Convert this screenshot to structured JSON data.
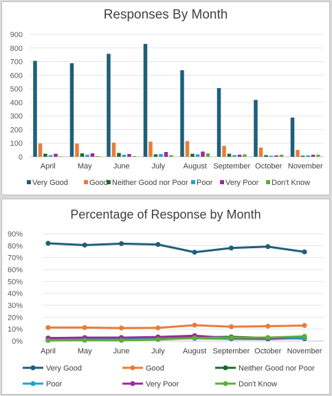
{
  "chart_data": [
    {
      "type": "bar",
      "title": "Responses By Month",
      "categories": [
        "April",
        "May",
        "June",
        "July",
        "August",
        "September",
        "October",
        "November"
      ],
      "ylim": [
        0,
        900
      ],
      "yticks": [
        0,
        100,
        200,
        300,
        400,
        500,
        600,
        700,
        800,
        900
      ],
      "grid": true,
      "legend_position": "bottom",
      "series": [
        {
          "name": "Very Good",
          "color": "#1f5f7a",
          "values": [
            705,
            688,
            757,
            830,
            636,
            505,
            418,
            288
          ]
        },
        {
          "name": "Good",
          "color": "#e87d37",
          "values": [
            98,
            97,
            104,
            112,
            115,
            80,
            68,
            50
          ]
        },
        {
          "name": "Neither Good nor Poor",
          "color": "#1a6b2a",
          "values": [
            22,
            25,
            28,
            18,
            22,
            22,
            12,
            8
          ]
        },
        {
          "name": "Poor",
          "color": "#1fa2d6",
          "values": [
            12,
            15,
            15,
            20,
            18,
            12,
            8,
            10
          ]
        },
        {
          "name": "Very Poor",
          "color": "#9c2a9c",
          "values": [
            22,
            25,
            20,
            35,
            38,
            15,
            10,
            15
          ]
        },
        {
          "name": "Don't Know",
          "color": "#5ab033",
          "values": [
            3,
            5,
            5,
            12,
            25,
            18,
            15,
            15
          ]
        }
      ]
    },
    {
      "type": "line",
      "title": "Percentage of Response by Month",
      "categories": [
        "April",
        "May",
        "June",
        "July",
        "August",
        "September",
        "October",
        "November"
      ],
      "ylim": [
        0,
        90
      ],
      "yticks": [
        "0%",
        "10%",
        "20%",
        "30%",
        "40%",
        "50%",
        "60%",
        "70%",
        "80%",
        "90%"
      ],
      "grid": true,
      "legend_position": "bottom",
      "series": [
        {
          "name": "Very Good",
          "color": "#1f5f7a",
          "values": [
            82,
            80.5,
            81.7,
            81,
            74.5,
            78,
            79.2,
            74.8
          ]
        },
        {
          "name": "Good",
          "color": "#e87d37",
          "values": [
            11.3,
            11.3,
            10.9,
            11,
            13.3,
            12,
            12.4,
            13
          ]
        },
        {
          "name": "Neither Good nor Poor",
          "color": "#1a6b2a",
          "values": [
            2.3,
            2.8,
            2.9,
            2,
            3,
            3.5,
            2.5,
            2
          ]
        },
        {
          "name": "Poor",
          "color": "#1fa2d6",
          "values": [
            1.4,
            1.8,
            1.6,
            2.1,
            2.2,
            1.8,
            1.6,
            2.5
          ]
        },
        {
          "name": "Very Poor",
          "color": "#9c2a9c",
          "values": [
            2.5,
            2.8,
            2.8,
            3.4,
            4.5,
            2.3,
            2,
            3.8
          ]
        },
        {
          "name": "Don't Know",
          "color": "#5ab033",
          "values": [
            0.4,
            0.6,
            0.5,
            1.2,
            2.5,
            2.8,
            2.9,
            3.9
          ]
        }
      ]
    }
  ]
}
